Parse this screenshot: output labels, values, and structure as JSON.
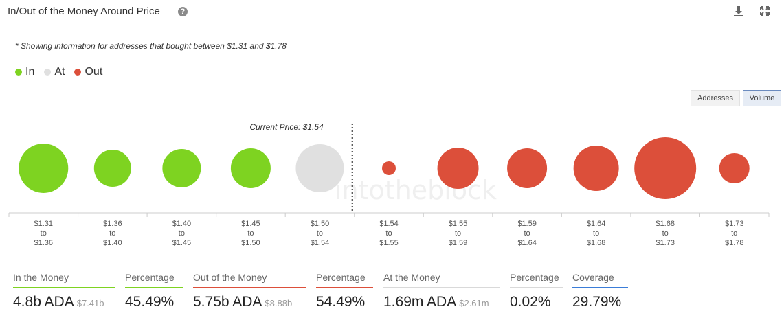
{
  "header": {
    "title": "In/Out of the Money Around Price"
  },
  "note": "* Showing information for addresses that bought between $1.31 and $1.78",
  "legend": [
    {
      "label": "In",
      "color": "#7ed321"
    },
    {
      "label": "At",
      "color": "#e0e0e0"
    },
    {
      "label": "Out",
      "color": "#dc4f3a"
    }
  ],
  "toggles": {
    "addresses": "Addresses",
    "volume": "Volume",
    "active": "Volume"
  },
  "chart_data": {
    "type": "bubble",
    "current_price_label": "Current Price: $1.54",
    "watermark": "intotheblock",
    "categories": [
      {
        "from": "$1.31",
        "to": "$1.36",
        "status": "in",
        "size": 36
      },
      {
        "from": "$1.36",
        "to": "$1.40",
        "status": "in",
        "size": 27
      },
      {
        "from": "$1.40",
        "to": "$1.45",
        "status": "in",
        "size": 28
      },
      {
        "from": "$1.45",
        "to": "$1.50",
        "status": "in",
        "size": 29
      },
      {
        "from": "$1.50",
        "to": "$1.54",
        "status": "at",
        "size": 35
      },
      {
        "from": "$1.54",
        "to": "$1.55",
        "status": "out",
        "size": 10
      },
      {
        "from": "$1.55",
        "to": "$1.59",
        "status": "out",
        "size": 30
      },
      {
        "from": "$1.59",
        "to": "$1.64",
        "status": "out",
        "size": 29
      },
      {
        "from": "$1.64",
        "to": "$1.68",
        "status": "out",
        "size": 33
      },
      {
        "from": "$1.68",
        "to": "$1.73",
        "status": "out",
        "size": 45
      },
      {
        "from": "$1.73",
        "to": "$1.78",
        "status": "out",
        "size": 22
      }
    ],
    "tick_to_word": "to",
    "current_price_after_index": 4
  },
  "stats": [
    {
      "label": "In the Money",
      "value": "4.8b ADA",
      "sub": "$7.41b",
      "color": "#7ed321"
    },
    {
      "label": "Percentage",
      "value": "45.49%",
      "sub": "",
      "color": "#7ed321"
    },
    {
      "label": "Out of the Money",
      "value": "5.75b ADA",
      "sub": "$8.88b",
      "color": "#dc4f3a"
    },
    {
      "label": "Percentage",
      "value": "54.49%",
      "sub": "",
      "color": "#dc4f3a"
    },
    {
      "label": "At the Money",
      "value": "1.69m ADA",
      "sub": "$2.61m",
      "color": "#d9d9d9"
    },
    {
      "label": "Percentage",
      "value": "0.02%",
      "sub": "",
      "color": "#d9d9d9"
    },
    {
      "label": "Coverage",
      "value": "29.79%",
      "sub": "",
      "color": "#3b7dd8"
    }
  ]
}
